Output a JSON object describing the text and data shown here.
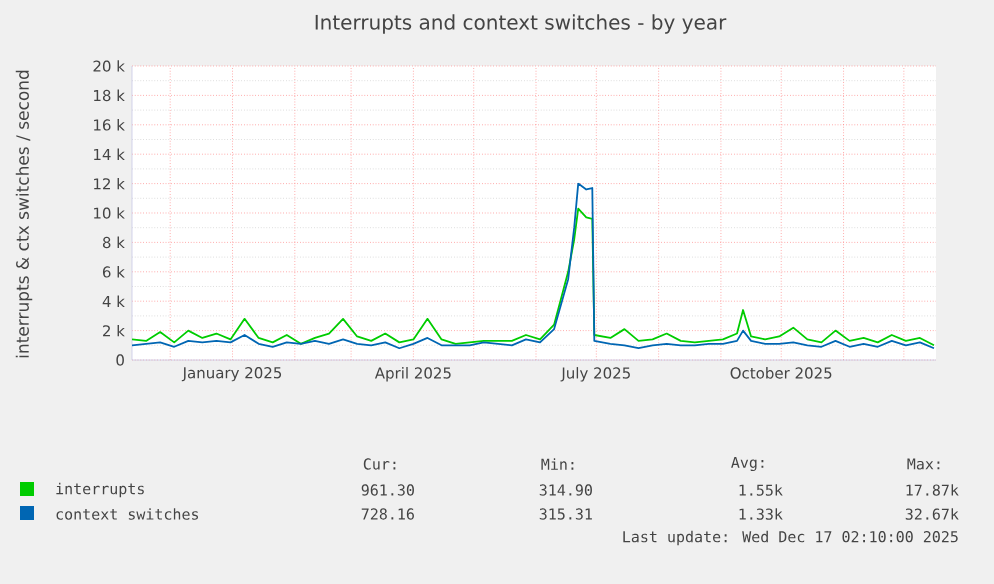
{
  "chart_data": {
    "type": "line",
    "title": "Interrupts and context switches - by year",
    "ylabel": "interrupts & ctx switches / second",
    "x": [
      "2024-11-12",
      "2024-11-19",
      "2024-11-26",
      "2024-12-03",
      "2024-12-10",
      "2024-12-17",
      "2024-12-24",
      "2024-12-31",
      "2025-01-07",
      "2025-01-14",
      "2025-01-21",
      "2025-01-28",
      "2025-02-04",
      "2025-02-11",
      "2025-02-18",
      "2025-02-25",
      "2025-03-04",
      "2025-03-11",
      "2025-03-18",
      "2025-03-25",
      "2025-04-01",
      "2025-04-08",
      "2025-04-15",
      "2025-04-22",
      "2025-04-29",
      "2025-05-06",
      "2025-05-13",
      "2025-05-20",
      "2025-05-27",
      "2025-06-03",
      "2025-06-10",
      "2025-06-17",
      "2025-06-20",
      "2025-06-22",
      "2025-06-26",
      "2025-06-29",
      "2025-06-30",
      "2025-07-08",
      "2025-07-15",
      "2025-07-22",
      "2025-07-29",
      "2025-08-05",
      "2025-08-12",
      "2025-08-19",
      "2025-08-26",
      "2025-09-02",
      "2025-09-09",
      "2025-09-12",
      "2025-09-16",
      "2025-09-23",
      "2025-09-30",
      "2025-10-07",
      "2025-10-14",
      "2025-10-21",
      "2025-10-28",
      "2025-11-04",
      "2025-11-11",
      "2025-11-18",
      "2025-11-25",
      "2025-12-02",
      "2025-12-09",
      "2025-12-16"
    ],
    "series": [
      {
        "name": "interrupts",
        "color": "#00cc00",
        "values": [
          1400,
          1300,
          1900,
          1200,
          2000,
          1500,
          1800,
          1400,
          2800,
          1500,
          1200,
          1700,
          1100,
          1500,
          1800,
          2800,
          1600,
          1300,
          1800,
          1200,
          1400,
          2800,
          1400,
          1100,
          1200,
          1300,
          1300,
          1300,
          1700,
          1400,
          2400,
          6000,
          8200,
          10300,
          9700,
          9600,
          1700,
          1500,
          2100,
          1300,
          1400,
          1800,
          1300,
          1200,
          1300,
          1400,
          1800,
          3400,
          1600,
          1400,
          1600,
          2200,
          1400,
          1200,
          2000,
          1300,
          1500,
          1200,
          1700,
          1300,
          1500,
          1000
        ]
      },
      {
        "name": "context switches",
        "color": "#0066b3",
        "values": [
          1000,
          1100,
          1200,
          900,
          1300,
          1200,
          1300,
          1200,
          1700,
          1100,
          900,
          1200,
          1100,
          1300,
          1100,
          1400,
          1100,
          1000,
          1200,
          800,
          1100,
          1500,
          1000,
          1000,
          1000,
          1200,
          1100,
          1000,
          1400,
          1200,
          2100,
          5500,
          9000,
          12000,
          11600,
          11700,
          1300,
          1100,
          1000,
          800,
          1000,
          1100,
          1000,
          1000,
          1100,
          1100,
          1300,
          2000,
          1300,
          1100,
          1100,
          1200,
          1000,
          900,
          1300,
          900,
          1100,
          900,
          1300,
          1000,
          1200,
          800
        ]
      }
    ],
    "xlim": [
      "2024-11-12",
      "2025-12-17"
    ],
    "xticks": [
      {
        "value": "2024-12-01",
        "label": null
      },
      {
        "value": "2025-01-01",
        "label": "January 2025"
      },
      {
        "value": "2025-02-01",
        "label": null
      },
      {
        "value": "2025-03-01",
        "label": null
      },
      {
        "value": "2025-04-01",
        "label": "April 2025"
      },
      {
        "value": "2025-05-01",
        "label": null
      },
      {
        "value": "2025-06-01",
        "label": null
      },
      {
        "value": "2025-07-01",
        "label": "July 2025"
      },
      {
        "value": "2025-08-01",
        "label": null
      },
      {
        "value": "2025-09-01",
        "label": null
      },
      {
        "value": "2025-10-01",
        "label": "October 2025"
      },
      {
        "value": "2025-11-01",
        "label": null
      },
      {
        "value": "2025-12-01",
        "label": null
      }
    ],
    "ylim": [
      0,
      20000
    ],
    "yticks": [
      0,
      {
        "value": 2000,
        "label": "2 k"
      },
      {
        "value": 4000,
        "label": "4 k"
      },
      {
        "value": 6000,
        "label": "6 k"
      },
      {
        "value": 8000,
        "label": "8 k"
      },
      {
        "value": 10000,
        "label": "10 k"
      },
      {
        "value": 12000,
        "label": "12 k"
      },
      {
        "value": 14000,
        "label": "14 k"
      },
      {
        "value": 16000,
        "label": "16 k"
      },
      {
        "value": 18000,
        "label": "18 k"
      },
      {
        "value": 20000,
        "label": "20 k"
      }
    ],
    "grid": true,
    "legend": "bottom left",
    "marker": "none",
    "line_style": "solid",
    "annotations": [
      "Cur:",
      "Min:",
      "Avg:",
      "Max:",
      "961.30",
      "314.90",
      "1.55k",
      "17.87k",
      "728.16",
      "315.31",
      "1.33k",
      "32.67k",
      "Last update: Wed Dec 17 02:10:00 2025"
    ]
  }
}
